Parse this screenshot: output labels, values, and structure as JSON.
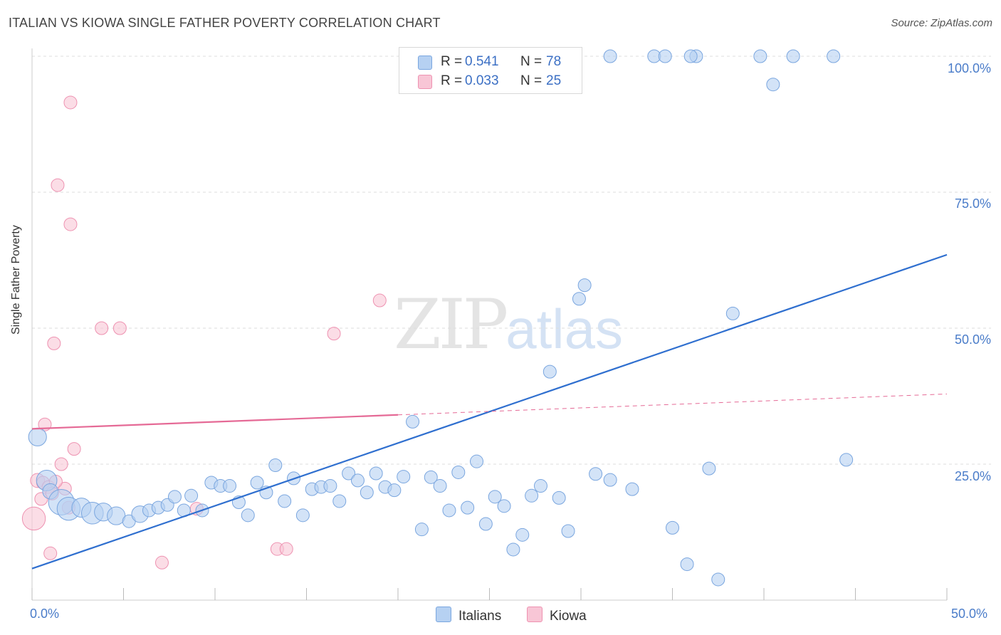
{
  "title": "ITALIAN VS KIOWA SINGLE FATHER POVERTY CORRELATION CHART",
  "source": "Source: ZipAtlas.com",
  "watermark": {
    "zip": "ZIP",
    "atlas": "atlas"
  },
  "legend_top": {
    "rows": [
      {
        "r_label": "R =",
        "r_value": "0.541",
        "n_label": "N =",
        "n_value": "78"
      },
      {
        "r_label": "R =",
        "r_value": "0.033",
        "n_label": "N =",
        "n_value": "25"
      }
    ]
  },
  "legend_bottom": {
    "italians": "Italians",
    "kiowa": "Kiowa"
  },
  "colors": {
    "italians_fill": "#b6d1f2",
    "italians_stroke": "#7aa6df",
    "italians_line": "#2f6fcf",
    "kiowa_fill": "#f8c6d6",
    "kiowa_stroke": "#ee92b1",
    "kiowa_line": "#e56a96",
    "grid": "#dddddd",
    "tick_label": "#4a7cc9"
  },
  "chart_data": {
    "type": "scatter",
    "title": "ITALIAN VS KIOWA SINGLE FATHER POVERTY CORRELATION CHART",
    "xlabel": "",
    "ylabel": "Single Father Poverty",
    "xlim": [
      0,
      50
    ],
    "ylim": [
      0,
      105
    ],
    "x_tick_labels": [
      {
        "value": 0,
        "label": "0.0%"
      },
      {
        "value": 50,
        "label": "50.0%"
      }
    ],
    "y_tick_labels": [
      {
        "value": 25,
        "label": "25.0%"
      },
      {
        "value": 50,
        "label": "50.0%"
      },
      {
        "value": 75,
        "label": "75.0%"
      },
      {
        "value": 100,
        "label": "100.0%"
      }
    ],
    "series": [
      {
        "name": "Italians",
        "R": 0.541,
        "N": 78,
        "trend": {
          "x": [
            0,
            50
          ],
          "y": [
            5.8,
            63.5
          ],
          "dashed_from": null
        },
        "points": [
          [
            0.3,
            30.0,
            1.4
          ],
          [
            0.8,
            22.0,
            1.6
          ],
          [
            1.0,
            20.0,
            1.2
          ],
          [
            1.6,
            18.0,
            2.0
          ],
          [
            2.0,
            16.8,
            1.8
          ],
          [
            2.7,
            17.0,
            1.5
          ],
          [
            3.3,
            16.0,
            1.7
          ],
          [
            3.9,
            16.2,
            1.4
          ],
          [
            4.6,
            15.5,
            1.4
          ],
          [
            5.3,
            14.5,
            1.0
          ],
          [
            5.9,
            15.8,
            1.3
          ],
          [
            6.4,
            16.5,
            1.0
          ],
          [
            6.9,
            17.0,
            1.0
          ],
          [
            7.4,
            17.5,
            1.0
          ],
          [
            7.8,
            19.0,
            1.0
          ],
          [
            8.3,
            16.5,
            1.0
          ],
          [
            8.7,
            19.2,
            1.0
          ],
          [
            9.3,
            16.5,
            1.0
          ],
          [
            9.8,
            21.6,
            1.0
          ],
          [
            10.3,
            21.0,
            1.0
          ],
          [
            10.8,
            21.0,
            1.0
          ],
          [
            11.3,
            18.0,
            1.0
          ],
          [
            11.8,
            15.6,
            1.0
          ],
          [
            12.3,
            21.6,
            1.0
          ],
          [
            12.8,
            19.8,
            1.0
          ],
          [
            13.3,
            24.8,
            1.0
          ],
          [
            13.8,
            18.2,
            1.0
          ],
          [
            14.3,
            22.4,
            1.0
          ],
          [
            14.8,
            15.6,
            1.0
          ],
          [
            15.3,
            20.4,
            1.0
          ],
          [
            15.8,
            20.8,
            1.0
          ],
          [
            16.3,
            21.0,
            1.0
          ],
          [
            16.8,
            18.2,
            1.0
          ],
          [
            17.3,
            23.3,
            1.0
          ],
          [
            17.8,
            22.0,
            1.0
          ],
          [
            18.3,
            19.8,
            1.0
          ],
          [
            18.8,
            23.3,
            1.0
          ],
          [
            19.3,
            20.8,
            1.0
          ],
          [
            19.8,
            20.2,
            1.0
          ],
          [
            20.3,
            22.7,
            1.0
          ],
          [
            20.8,
            32.8,
            1.0
          ],
          [
            21.3,
            13.0,
            1.0
          ],
          [
            21.8,
            22.6,
            1.0
          ],
          [
            22.3,
            21.0,
            1.0
          ],
          [
            22.8,
            16.5,
            1.0
          ],
          [
            23.3,
            23.5,
            1.0
          ],
          [
            23.8,
            17.0,
            1.0
          ],
          [
            24.3,
            25.5,
            1.0
          ],
          [
            24.8,
            14.0,
            1.0
          ],
          [
            25.3,
            19.0,
            1.0
          ],
          [
            25.8,
            17.3,
            1.0
          ],
          [
            26.3,
            9.3,
            1.0
          ],
          [
            26.8,
            12.0,
            1.0
          ],
          [
            27.3,
            19.2,
            1.0
          ],
          [
            27.8,
            21.0,
            1.0
          ],
          [
            28.3,
            42.0,
            1.0
          ],
          [
            28.8,
            18.8,
            1.0
          ],
          [
            29.3,
            12.7,
            1.0
          ],
          [
            29.9,
            55.4,
            1.0
          ],
          [
            30.2,
            57.9,
            1.0
          ],
          [
            30.8,
            23.2,
            1.0
          ],
          [
            31.6,
            22.1,
            1.0
          ],
          [
            31.6,
            100.0,
            1.0
          ],
          [
            32.8,
            20.4,
            1.0
          ],
          [
            34.0,
            100.0,
            1.0
          ],
          [
            34.6,
            100.0,
            1.0
          ],
          [
            35.0,
            13.3,
            1.0
          ],
          [
            35.8,
            6.6,
            1.0
          ],
          [
            36.3,
            100.0,
            1.0
          ],
          [
            37.0,
            24.2,
            1.0
          ],
          [
            37.5,
            3.8,
            1.0
          ],
          [
            38.3,
            52.7,
            1.0
          ],
          [
            39.8,
            100.0,
            1.0
          ],
          [
            40.5,
            94.8,
            1.0
          ],
          [
            41.6,
            100.0,
            1.0
          ],
          [
            43.8,
            100.0,
            1.0
          ],
          [
            44.5,
            25.8,
            1.0
          ],
          [
            36.0,
            100.0,
            1.0
          ]
        ]
      },
      {
        "name": "Kiowa",
        "R": 0.033,
        "N": 25,
        "trend": {
          "x": [
            0,
            50
          ],
          "y": [
            31.5,
            37.9
          ],
          "solid_until_x": 20.0
        },
        "points": [
          [
            0.1,
            15.0,
            1.8
          ],
          [
            0.3,
            22.0,
            1.1
          ],
          [
            0.5,
            18.6,
            1.0
          ],
          [
            0.6,
            21.6,
            1.0
          ],
          [
            0.7,
            32.3,
            1.0
          ],
          [
            0.9,
            20.8,
            1.0
          ],
          [
            1.0,
            8.6,
            1.0
          ],
          [
            1.1,
            19.6,
            1.0
          ],
          [
            1.4,
            76.3,
            1.0
          ],
          [
            1.6,
            25.0,
            1.0
          ],
          [
            1.8,
            20.5,
            1.0
          ],
          [
            2.0,
            17.0,
            1.0
          ],
          [
            2.1,
            91.5,
            1.0
          ],
          [
            2.1,
            69.1,
            1.0
          ],
          [
            2.3,
            27.8,
            1.0
          ],
          [
            3.8,
            50.0,
            1.0
          ],
          [
            4.8,
            50.0,
            1.0
          ],
          [
            1.2,
            47.2,
            1.0
          ],
          [
            7.1,
            6.9,
            1.0
          ],
          [
            9.0,
            16.8,
            1.0
          ],
          [
            13.4,
            9.4,
            1.0
          ],
          [
            13.9,
            9.4,
            1.0
          ],
          [
            16.5,
            49.0,
            1.0
          ],
          [
            19.0,
            55.1,
            1.0
          ],
          [
            1.3,
            21.8,
            1.0
          ]
        ]
      }
    ]
  }
}
